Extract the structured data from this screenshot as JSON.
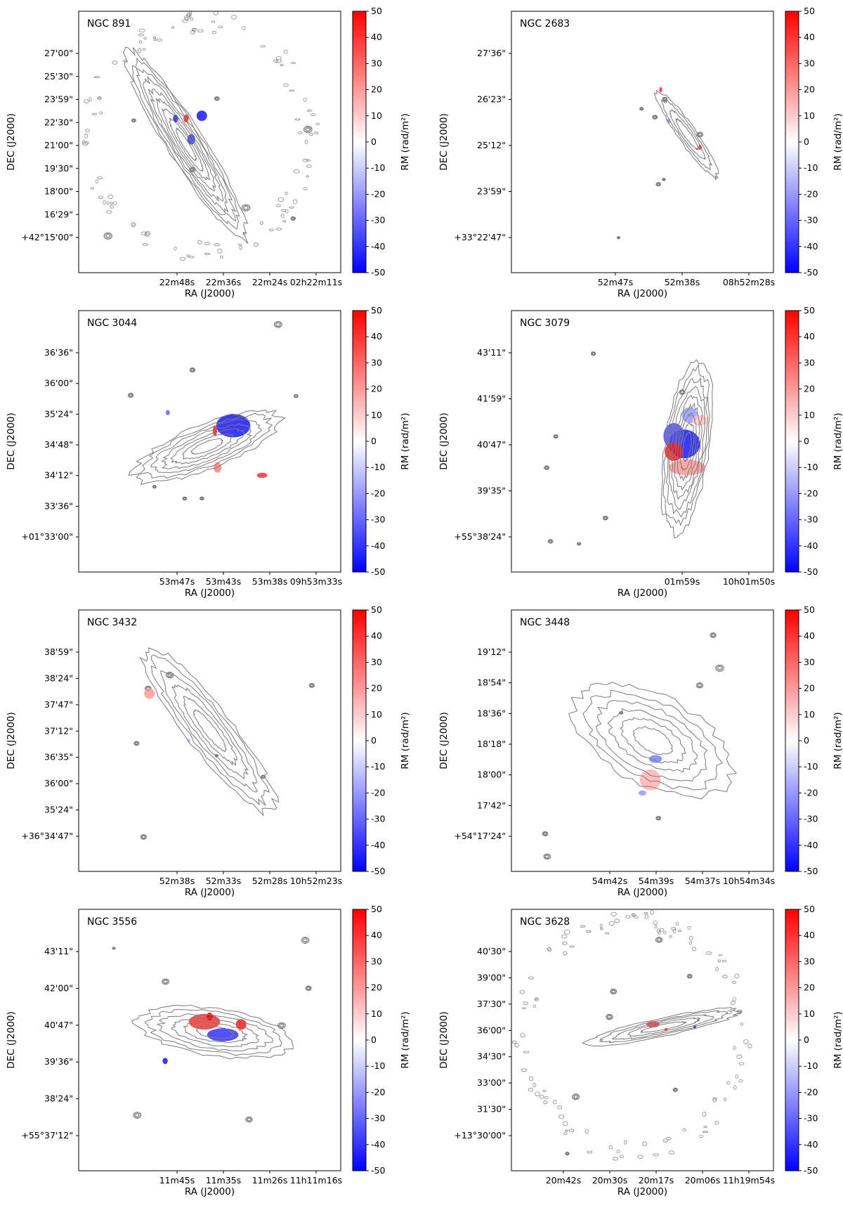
{
  "figure": {
    "colorbar_label": "RM (rad/m²)",
    "xlabel": "RA (J2000)",
    "ylabel": "DEC (J2000)"
  },
  "chart_data": [
    {
      "type": "contour-map",
      "title": "NGC 891",
      "xlabel": "RA (J2000)",
      "ylabel": "DEC (J2000)",
      "xticks": [
        "22m48s",
        "22m36s",
        "22m24s",
        "02h22m11s"
      ],
      "yticks": [
        "27'00\"",
        "25'30\"",
        "23'59\"",
        "22'30\"",
        "21'00\"",
        "19'30\"",
        "18'00\"",
        "16'29\"",
        "+42°15'00\""
      ],
      "colorbar": {
        "label": "RM (rad/m²)",
        "range": [
          -50,
          50
        ],
        "ticks": [
          "50",
          "40",
          "30",
          "20",
          "10",
          "0",
          "-10",
          "-20",
          "-30",
          "-40",
          "-50"
        ]
      },
      "galaxy": {
        "cx": 0.41,
        "cy": 0.51,
        "rx": 0.07,
        "ry": 0.42,
        "angle": -32,
        "levels": 9,
        "halo_ring": true
      },
      "rm_patches": [
        {
          "cx": 0.47,
          "cy": 0.4,
          "rx": 0.02,
          "ry": 0.02,
          "rm": -45
        },
        {
          "cx": 0.43,
          "cy": 0.49,
          "rx": 0.015,
          "ry": 0.02,
          "rm": -40
        },
        {
          "cx": 0.41,
          "cy": 0.41,
          "rx": 0.01,
          "ry": 0.015,
          "rm": 45
        },
        {
          "cx": 0.37,
          "cy": 0.41,
          "rx": 0.01,
          "ry": 0.015,
          "rm": -45
        }
      ]
    },
    {
      "type": "contour-map",
      "title": "NGC 2683",
      "xlabel": "RA (J2000)",
      "ylabel": "DEC (J2000)",
      "xticks": [
        "52m47s",
        "52m38s",
        "08h52m28s"
      ],
      "yticks": [
        "27'36\"",
        "26'23\"",
        "25'12\"",
        "23'59\"",
        "+33°22'47\""
      ],
      "colorbar": {
        "label": "RM (rad/m²)",
        "range": [
          -50,
          50
        ],
        "ticks": [
          "50",
          "40",
          "30",
          "20",
          "10",
          "0",
          "-10",
          "-20",
          "-30",
          "-40",
          "-50"
        ]
      },
      "galaxy": {
        "cx": 0.67,
        "cy": 0.47,
        "rx": 0.035,
        "ry": 0.2,
        "angle": -35,
        "levels": 4,
        "halo_ring": false
      },
      "rm_patches": [
        {
          "cx": 0.57,
          "cy": 0.3,
          "rx": 0.006,
          "ry": 0.01,
          "rm": 40
        },
        {
          "cx": 0.72,
          "cy": 0.52,
          "rx": 0.006,
          "ry": 0.01,
          "rm": 45
        },
        {
          "cx": 0.6,
          "cy": 0.42,
          "rx": 0.006,
          "ry": 0.01,
          "rm": -25
        }
      ]
    },
    {
      "type": "contour-map",
      "title": "NGC 3044",
      "xlabel": "RA (J2000)",
      "ylabel": "DEC (J2000)",
      "xticks": [
        "53m47s",
        "53m43s",
        "53m38s",
        "09h53m33s"
      ],
      "yticks": [
        "36'36\"",
        "36'00\"",
        "35'24\"",
        "34'48\"",
        "34'12\"",
        "33'36\"",
        "+01°33'00\""
      ],
      "colorbar": {
        "label": "RM (rad/m²)",
        "range": [
          -50,
          50
        ],
        "ticks": [
          "50",
          "40",
          "30",
          "20",
          "10",
          "0",
          "-10",
          "-20",
          "-30",
          "-40",
          "-50"
        ]
      },
      "galaxy": {
        "cx": 0.49,
        "cy": 0.52,
        "rx": 0.3,
        "ry": 0.085,
        "angle": -22,
        "levels": 7,
        "halo_ring": false
      },
      "rm_patches": [
        {
          "cx": 0.59,
          "cy": 0.44,
          "rx": 0.065,
          "ry": 0.045,
          "rm": -45
        },
        {
          "cx": 0.52,
          "cy": 0.46,
          "rx": 0.008,
          "ry": 0.02,
          "rm": 45
        },
        {
          "cx": 0.53,
          "cy": 0.6,
          "rx": 0.015,
          "ry": 0.02,
          "rm": 25
        },
        {
          "cx": 0.7,
          "cy": 0.63,
          "rx": 0.02,
          "ry": 0.01,
          "rm": 40
        },
        {
          "cx": 0.34,
          "cy": 0.39,
          "rx": 0.008,
          "ry": 0.01,
          "rm": -30
        }
      ]
    },
    {
      "type": "contour-map",
      "title": "NGC 3079",
      "xlabel": "RA (J2000)",
      "ylabel": "DEC (J2000)",
      "xticks": [
        "01m59s",
        "10h01m50s"
      ],
      "yticks": [
        "43'11\"",
        "41'59\"",
        "40'47\"",
        "39'35\"",
        "+55°38'24\""
      ],
      "colorbar": {
        "label": "RM (rad/m²)",
        "range": [
          -50,
          50
        ],
        "ticks": [
          "50",
          "40",
          "30",
          "20",
          "10",
          "0",
          "-10",
          "-20",
          "-30",
          "-40",
          "-50"
        ]
      },
      "galaxy": {
        "cx": 0.67,
        "cy": 0.52,
        "rx": 0.085,
        "ry": 0.33,
        "angle": 8,
        "levels": 9,
        "halo_ring": false
      },
      "rm_patches": [
        {
          "cx": 0.66,
          "cy": 0.51,
          "rx": 0.06,
          "ry": 0.055,
          "rm": -45
        },
        {
          "cx": 0.62,
          "cy": 0.48,
          "rx": 0.04,
          "ry": 0.05,
          "rm": -35
        },
        {
          "cx": 0.62,
          "cy": 0.54,
          "rx": 0.035,
          "ry": 0.035,
          "rm": 45
        },
        {
          "cx": 0.67,
          "cy": 0.6,
          "rx": 0.07,
          "ry": 0.03,
          "rm": 20
        },
        {
          "cx": 0.68,
          "cy": 0.4,
          "rx": 0.03,
          "ry": 0.03,
          "rm": -20
        },
        {
          "cx": 0.72,
          "cy": 0.42,
          "rx": 0.03,
          "ry": 0.02,
          "rm": 12
        }
      ]
    },
    {
      "type": "contour-map",
      "title": "NGC 3432",
      "xlabel": "RA (J2000)",
      "ylabel": "DEC (J2000)",
      "xticks": [
        "52m38s",
        "52m33s",
        "52m28s",
        "10h52m23s"
      ],
      "yticks": [
        "38'59\"",
        "38'24\"",
        "37'47\"",
        "37'12\"",
        "36'35\"",
        "36'00\"",
        "35'24\"",
        "+36°34'47\""
      ],
      "colorbar": {
        "label": "RM (rad/m²)",
        "range": [
          -50,
          50
        ],
        "ticks": [
          "50",
          "40",
          "30",
          "20",
          "10",
          "0",
          "-10",
          "-20",
          "-30",
          "-40",
          "-50"
        ]
      },
      "galaxy": {
        "cx": 0.5,
        "cy": 0.46,
        "rx": 0.085,
        "ry": 0.4,
        "angle": -38,
        "levels": 6,
        "halo_ring": false
      },
      "rm_patches": [
        {
          "cx": 0.27,
          "cy": 0.32,
          "rx": 0.02,
          "ry": 0.02,
          "rm": 20
        },
        {
          "cx": 0.42,
          "cy": 0.5,
          "rx": 0.006,
          "ry": 0.008,
          "rm": -15
        }
      ]
    },
    {
      "type": "contour-map",
      "title": "NGC 3448",
      "xlabel": "RA (J2000)",
      "ylabel": "DEC (J2000)",
      "xticks": [
        "54m42s",
        "54m39s",
        "54m37s",
        "10h54m34s"
      ],
      "yticks": [
        "19'12\"",
        "18'54\"",
        "18'36\"",
        "18'18\"",
        "18'00\"",
        "17'42\"",
        "+54°17'24\""
      ],
      "colorbar": {
        "label": "RM (rad/m²)",
        "range": [
          -50,
          50
        ],
        "ticks": [
          "50",
          "40",
          "30",
          "20",
          "10",
          "0",
          "-10",
          "-20",
          "-30",
          "-40",
          "-50"
        ]
      },
      "galaxy": {
        "cx": 0.54,
        "cy": 0.5,
        "rx": 0.33,
        "ry": 0.17,
        "angle": 28,
        "levels": 6,
        "halo_ring": false
      },
      "rm_patches": [
        {
          "cx": 0.55,
          "cy": 0.57,
          "rx": 0.025,
          "ry": 0.015,
          "rm": -25
        },
        {
          "cx": 0.53,
          "cy": 0.65,
          "rx": 0.04,
          "ry": 0.04,
          "rm": 15
        },
        {
          "cx": 0.5,
          "cy": 0.7,
          "rx": 0.015,
          "ry": 0.01,
          "rm": -20
        }
      ]
    },
    {
      "type": "contour-map",
      "title": "NGC 3556",
      "xlabel": "RA (J2000)",
      "ylabel": "DEC (J2000)",
      "xticks": [
        "11m45s",
        "11m35s",
        "11m26s",
        "11h11m16s"
      ],
      "yticks": [
        "43'11\"",
        "42'00\"",
        "40'47\"",
        "39'36\"",
        "38'24\"",
        "+55°37'12\""
      ],
      "colorbar": {
        "label": "RM (rad/m²)",
        "range": [
          -50,
          50
        ],
        "ticks": [
          "50",
          "40",
          "30",
          "20",
          "10",
          "0",
          "-10",
          "-20",
          "-30",
          "-40",
          "-50"
        ]
      },
      "galaxy": {
        "cx": 0.52,
        "cy": 0.47,
        "rx": 0.3,
        "ry": 0.09,
        "angle": 8,
        "levels": 6,
        "halo_ring": false
      },
      "rm_patches": [
        {
          "cx": 0.48,
          "cy": 0.43,
          "rx": 0.06,
          "ry": 0.03,
          "rm": 40
        },
        {
          "cx": 0.55,
          "cy": 0.48,
          "rx": 0.06,
          "ry": 0.025,
          "rm": -40
        },
        {
          "cx": 0.62,
          "cy": 0.44,
          "rx": 0.02,
          "ry": 0.02,
          "rm": 45
        },
        {
          "cx": 0.5,
          "cy": 0.41,
          "rx": 0.012,
          "ry": 0.015,
          "rm": 50
        },
        {
          "cx": 0.33,
          "cy": 0.58,
          "rx": 0.01,
          "ry": 0.012,
          "rm": -45
        }
      ]
    },
    {
      "type": "contour-map",
      "title": "NGC 3628",
      "xlabel": "RA (J2000)",
      "ylabel": "DEC (J2000)",
      "xticks": [
        "20m42s",
        "20m30s",
        "20m17s",
        "20m06s",
        "11h19m54s"
      ],
      "yticks": [
        "40'30\"",
        "39'00\"",
        "37'30\"",
        "36'00\"",
        "34'30\"",
        "33'00\"",
        "31'30\"",
        "+13°30'00\""
      ],
      "colorbar": {
        "label": "RM (rad/m²)",
        "range": [
          -50,
          50
        ],
        "ticks": [
          "50",
          "40",
          "30",
          "20",
          "10",
          "0",
          "-10",
          "-20",
          "-30",
          "-40",
          "-50"
        ]
      },
      "galaxy": {
        "cx": 0.58,
        "cy": 0.45,
        "rx": 0.3,
        "ry": 0.035,
        "angle": -12,
        "levels": 5,
        "halo_ring": true
      },
      "rm_patches": [
        {
          "cx": 0.54,
          "cy": 0.44,
          "rx": 0.025,
          "ry": 0.012,
          "rm": 40
        },
        {
          "cx": 0.59,
          "cy": 0.46,
          "rx": 0.006,
          "ry": 0.006,
          "rm": 45
        },
        {
          "cx": 0.7,
          "cy": 0.45,
          "rx": 0.005,
          "ry": 0.006,
          "rm": -45
        }
      ]
    }
  ]
}
